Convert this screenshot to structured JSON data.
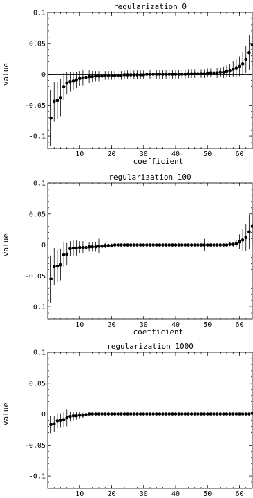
{
  "chart_data": [
    {
      "type": "scatter",
      "title": "regularization 0",
      "xlabel": "coefficient",
      "ylabel": "value",
      "xlim": [
        0,
        64
      ],
      "ylim": [
        -0.12,
        0.1
      ],
      "xticks": [
        10,
        20,
        30,
        40,
        50,
        60
      ],
      "yticks": [
        -0.1,
        -0.05,
        0,
        0.05,
        0.1
      ],
      "ytick_labels": [
        "-0.1",
        "-0.05",
        "0",
        "0.05",
        "0.1"
      ],
      "series": [
        {
          "x": [
            1,
            2,
            3,
            4,
            5,
            6,
            7,
            8,
            9,
            10,
            11,
            12,
            13,
            14,
            15,
            16,
            17,
            18,
            19,
            20,
            21,
            22,
            23,
            24,
            25,
            26,
            27,
            28,
            29,
            30,
            31,
            32,
            33,
            34,
            35,
            36,
            37,
            38,
            39,
            40,
            41,
            42,
            43,
            44,
            45,
            46,
            47,
            48,
            49,
            50,
            51,
            52,
            53,
            54,
            55,
            56,
            57,
            58,
            59,
            60,
            61,
            62,
            63,
            64
          ],
          "y": [
            -0.071,
            -0.044,
            -0.042,
            -0.038,
            -0.02,
            -0.014,
            -0.012,
            -0.011,
            -0.009,
            -0.007,
            -0.006,
            -0.005,
            -0.004,
            -0.004,
            -0.003,
            -0.003,
            -0.003,
            -0.002,
            -0.002,
            -0.002,
            -0.002,
            -0.002,
            -0.002,
            -0.001,
            -0.001,
            -0.001,
            -0.001,
            -0.001,
            -0.001,
            -0.001,
            0,
            0,
            0,
            0,
            0,
            0,
            0,
            0,
            0,
            0,
            0,
            0,
            0,
            0.001,
            0.001,
            0.001,
            0.001,
            0.001,
            0.001,
            0.002,
            0.002,
            0.002,
            0.002,
            0.003,
            0.003,
            0.005,
            0.006,
            0.008,
            0.01,
            0.013,
            0.017,
            0.024,
            0.035,
            0.048
          ],
          "err": [
            0.045,
            0.032,
            0.03,
            0.03,
            0.022,
            0.018,
            0.016,
            0.015,
            0.013,
            0.012,
            0.012,
            0.01,
            0.01,
            0.009,
            0.008,
            0.008,
            0.008,
            0.007,
            0.007,
            0.007,
            0.007,
            0.007,
            0.007,
            0.007,
            0.007,
            0.007,
            0.007,
            0.007,
            0.007,
            0.007,
            0.007,
            0.007,
            0.007,
            0.007,
            0.007,
            0.007,
            0.007,
            0.007,
            0.007,
            0.007,
            0.007,
            0.007,
            0.007,
            0.007,
            0.007,
            0.007,
            0.007,
            0.007,
            0.007,
            0.007,
            0.007,
            0.007,
            0.008,
            0.008,
            0.009,
            0.01,
            0.011,
            0.013,
            0.014,
            0.016,
            0.019,
            0.022,
            0.028,
            0.035
          ]
        }
      ]
    },
    {
      "type": "scatter",
      "title": "regularization 100",
      "xlabel": "coefficient",
      "ylabel": "value",
      "xlim": [
        0,
        64
      ],
      "ylim": [
        -0.12,
        0.1
      ],
      "xticks": [
        10,
        20,
        30,
        40,
        50,
        60
      ],
      "yticks": [
        -0.1,
        -0.05,
        0,
        0.05,
        0.1
      ],
      "ytick_labels": [
        "-0.1",
        "-0.05",
        "0",
        "0.05",
        "0.1"
      ],
      "series": [
        {
          "x": [
            1,
            2,
            3,
            4,
            5,
            6,
            7,
            8,
            9,
            10,
            11,
            12,
            13,
            14,
            15,
            16,
            17,
            18,
            19,
            20,
            21,
            22,
            23,
            24,
            25,
            26,
            27,
            28,
            29,
            30,
            31,
            32,
            33,
            34,
            35,
            36,
            37,
            38,
            39,
            40,
            41,
            42,
            43,
            44,
            45,
            46,
            47,
            48,
            49,
            50,
            51,
            52,
            53,
            54,
            55,
            56,
            57,
            58,
            59,
            60,
            61,
            62,
            63,
            64
          ],
          "y": [
            -0.055,
            -0.035,
            -0.034,
            -0.032,
            -0.016,
            -0.015,
            -0.006,
            -0.005,
            -0.005,
            -0.004,
            -0.004,
            -0.004,
            -0.003,
            -0.003,
            -0.003,
            -0.002,
            -0.002,
            -0.001,
            -0.001,
            -0.001,
            0,
            0,
            0,
            0,
            0,
            0,
            0,
            0,
            0,
            0,
            0,
            0,
            0,
            0,
            0,
            0,
            0,
            0,
            0,
            0,
            0,
            0,
            0,
            0,
            0,
            0,
            0,
            0,
            0,
            0,
            0,
            0,
            0,
            0,
            0,
            0,
            0.001,
            0.001,
            0.002,
            0.005,
            0.008,
            0.012,
            0.021,
            0.03
          ],
          "err": [
            0.038,
            0.03,
            0.026,
            0.026,
            0.02,
            0.018,
            0.012,
            0.012,
            0.012,
            0.01,
            0.01,
            0.01,
            0.008,
            0.008,
            0.008,
            0.012,
            0.006,
            0.004,
            0.003,
            0.003,
            0.002,
            0.002,
            0.002,
            0.002,
            0.002,
            0.002,
            0.002,
            0.002,
            0.002,
            0.002,
            0.002,
            0.002,
            0.002,
            0.002,
            0.002,
            0.002,
            0.002,
            0.002,
            0.002,
            0.002,
            0.002,
            0.002,
            0.002,
            0.002,
            0.002,
            0.002,
            0.002,
            0.002,
            0.01,
            0.002,
            0.002,
            0.002,
            0.002,
            0.002,
            0.002,
            0.002,
            0.003,
            0.004,
            0.006,
            0.012,
            0.018,
            0.022,
            0.028,
            0.032
          ]
        }
      ]
    },
    {
      "type": "scatter",
      "title": "regularization 1000",
      "xlabel": "coefficient",
      "ylabel": "value",
      "xlim": [
        0,
        64
      ],
      "ylim": [
        -0.12,
        0.1
      ],
      "xticks": [
        10,
        20,
        30,
        40,
        50,
        60
      ],
      "yticks": [
        -0.1,
        -0.05,
        0,
        0.05,
        0.1
      ],
      "ytick_labels": [
        "-0.1",
        "-0.05",
        "0",
        "0.05",
        "0.1"
      ],
      "series": [
        {
          "x": [
            1,
            2,
            3,
            4,
            5,
            6,
            7,
            8,
            9,
            10,
            11,
            12,
            13,
            14,
            15,
            16,
            17,
            18,
            19,
            20,
            21,
            22,
            23,
            24,
            25,
            26,
            27,
            28,
            29,
            30,
            31,
            32,
            33,
            34,
            35,
            36,
            37,
            38,
            39,
            40,
            41,
            42,
            43,
            44,
            45,
            46,
            47,
            48,
            49,
            50,
            51,
            52,
            53,
            54,
            55,
            56,
            57,
            58,
            59,
            60,
            61,
            62,
            63,
            64
          ],
          "y": [
            -0.017,
            -0.016,
            -0.011,
            -0.01,
            -0.009,
            -0.006,
            -0.004,
            -0.003,
            -0.003,
            -0.002,
            -0.002,
            -0.001,
            0,
            0,
            0,
            0,
            0,
            0,
            0,
            0,
            0,
            0,
            0,
            0,
            0,
            0,
            0,
            0,
            0,
            0,
            0,
            0,
            0,
            0,
            0,
            0,
            0,
            0,
            0,
            0,
            0,
            0,
            0,
            0,
            0,
            0,
            0,
            0,
            0,
            0,
            0,
            0,
            0,
            0,
            0,
            0,
            0,
            0,
            0,
            0,
            0,
            0,
            0,
            0.001
          ],
          "err": [
            0.014,
            0.013,
            0.012,
            0.011,
            0.012,
            0.014,
            0.008,
            0.007,
            0.006,
            0.005,
            0.004,
            0.003,
            0.001,
            0.001,
            0.001,
            0.001,
            0.001,
            0.001,
            0.001,
            0.001,
            0.001,
            0.001,
            0.001,
            0.001,
            0.001,
            0.001,
            0.001,
            0.001,
            0.001,
            0.001,
            0.001,
            0.001,
            0.001,
            0.001,
            0.001,
            0.001,
            0.001,
            0.001,
            0.001,
            0.001,
            0.001,
            0.001,
            0.001,
            0.001,
            0.001,
            0.001,
            0.001,
            0.001,
            0.001,
            0.001,
            0.001,
            0.001,
            0.001,
            0.001,
            0.001,
            0.001,
            0.001,
            0.001,
            0.001,
            0.001,
            0.001,
            0.001,
            0.001,
            0.002
          ]
        }
      ]
    }
  ]
}
